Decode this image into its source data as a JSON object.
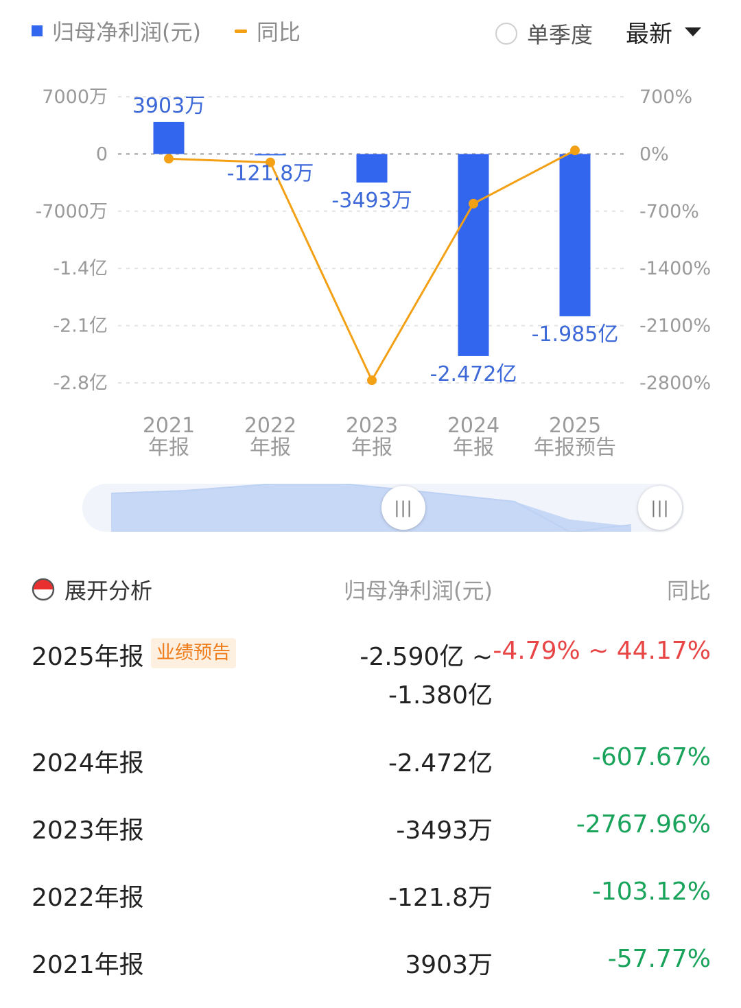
{
  "legend": {
    "bar_label": "归母净利润(元)",
    "line_label": "同比",
    "bar_color": "#3366ee",
    "line_color": "#f3a015"
  },
  "controls": {
    "single_quarter_label": "单季度",
    "period_select_value": "最新"
  },
  "chart_data": {
    "type": "bar",
    "categories": [
      [
        "2021",
        "年报"
      ],
      [
        "2022",
        "年报"
      ],
      [
        "2023",
        "年报"
      ],
      [
        "2024",
        "年报"
      ],
      [
        "2025",
        "年报预告"
      ]
    ],
    "series": [
      {
        "name": "归母净利润(元)",
        "type": "bar",
        "axis": "left",
        "unit": "万",
        "values": [
          3903,
          -121.8,
          -3493,
          -24720,
          -19850
        ],
        "labels": [
          "3903万",
          "-121.8万",
          "-3493万",
          "-2.472亿",
          "-1.985亿"
        ]
      },
      {
        "name": "同比",
        "type": "line",
        "axis": "right",
        "unit": "%",
        "values": [
          -57.77,
          -103.12,
          -2767.96,
          -607.67,
          44.17
        ]
      }
    ],
    "y_left": {
      "ticks": [
        7000,
        0,
        -7000,
        -14000,
        -21000,
        -28000
      ],
      "tick_labels": [
        "7000万",
        "0",
        "-7000万",
        "-1.4亿",
        "-2.1亿",
        "-2.8亿"
      ],
      "range": [
        -28000,
        7000
      ]
    },
    "y_right": {
      "ticks": [
        700,
        0,
        -700,
        -1400,
        -2100,
        -2800
      ],
      "tick_labels": [
        "700%",
        "0%",
        "-700%",
        "-1400%",
        "-2100%",
        "-2800%"
      ],
      "range": [
        -2800,
        700
      ]
    },
    "grid": true
  },
  "table": {
    "expand_label": "展开分析",
    "col_value": "归母净利润(元)",
    "col_yoy": "同比",
    "rows": [
      {
        "year": "2025年报",
        "badge": "业绩预告",
        "value_line1": "-2.590亿 ~",
        "value_line2": "-1.380亿",
        "yoy": "-4.79% ~ 44.17%"
      },
      {
        "year": "2024年报",
        "value_line1": "-2.472亿",
        "yoy": "-607.67%"
      },
      {
        "year": "2023年报",
        "value_line1": "-3493万",
        "yoy": "-2767.96%"
      },
      {
        "year": "2022年报",
        "value_line1": "-121.8万",
        "yoy": "-103.12%"
      },
      {
        "year": "2021年报",
        "value_line1": "3903万",
        "yoy": "-57.77%"
      }
    ]
  }
}
